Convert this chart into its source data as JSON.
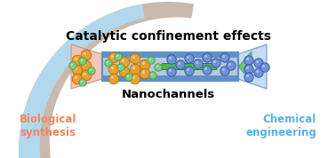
{
  "title_text": "Catalytic confinement effects",
  "subtitle_text": "Nanochannels",
  "left_label": "Biological\nsynthesis",
  "right_label": "Chemical\nengineering",
  "left_label_color": "#f4845f",
  "right_label_color": "#5ab0e8",
  "bg_color": "#ffffff",
  "arrow_left_color": "#c0ada0",
  "arrow_right_color": "#b0dcf5",
  "nanochannel_border_color": "#6090c8",
  "nanochannel_inner_color": "#b8c8dc",
  "left_cone_color": "#f5c0b0",
  "right_cone_color": "#c0d8f0",
  "orange_ball_color": "#e8a030",
  "green_ball_color": "#80cc80",
  "blue_ball_color": "#7090d8",
  "green_rod_color": "#50b850",
  "figsize": [
    3.78,
    1.78
  ],
  "dpi": 100
}
